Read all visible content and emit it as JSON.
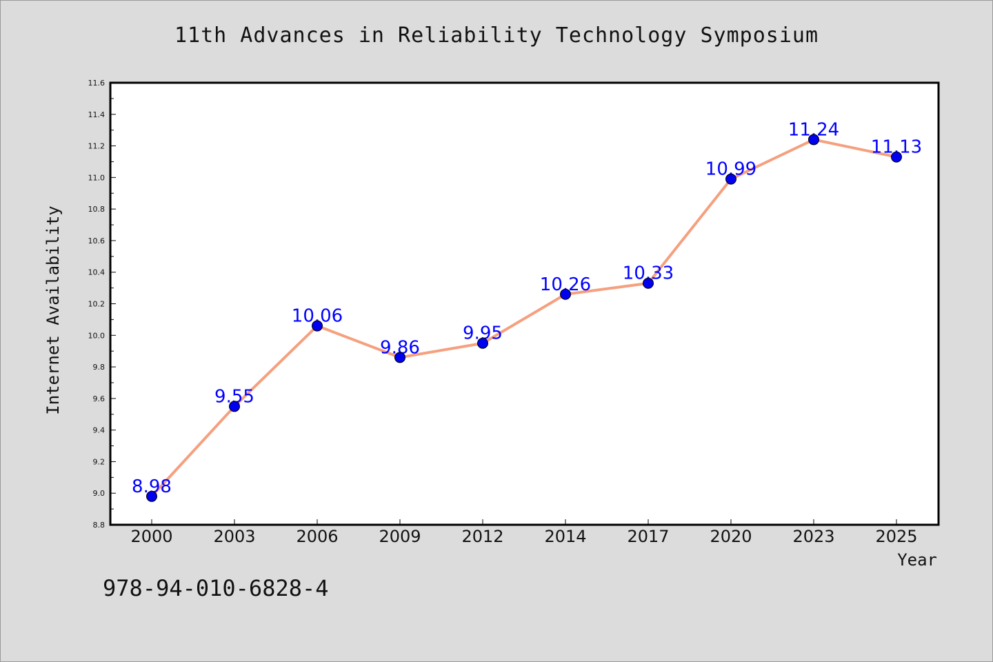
{
  "title": "11th Advances in Reliability Technology Symposium",
  "footer_code": "978-94-010-6828-4",
  "chart_data": {
    "type": "line",
    "title": "11th Advances in Reliability Technology Symposium",
    "xlabel": "Year",
    "ylabel": "Internet Availability",
    "categories": [
      "2000",
      "2003",
      "2006",
      "2009",
      "2012",
      "2014",
      "2017",
      "2020",
      "2023",
      "2025"
    ],
    "series": [
      {
        "values": [
          8.98,
          9.55,
          10.06,
          9.86,
          9.95,
          10.26,
          10.33,
          10.99,
          11.24,
          11.13
        ],
        "line_color": "#f5a07f",
        "marker_color": "#0000ee"
      }
    ],
    "data_labels": [
      "8.98",
      "9.55",
      "10.06",
      "9.86",
      "9.95",
      "10.26",
      "10.33",
      "10.99",
      "11.24",
      "11.13"
    ],
    "ylim": [
      8.8,
      11.6
    ],
    "yticks": [
      "8.8",
      "9.0",
      "9.2",
      "9.4",
      "9.6",
      "9.8",
      "10.0",
      "10.2",
      "10.4",
      "10.6",
      "10.8",
      "11.0",
      "11.2",
      "11.4",
      "11.6"
    ],
    "grid": false,
    "background": "#dcdcdc",
    "plot_background": "#ffffff"
  }
}
